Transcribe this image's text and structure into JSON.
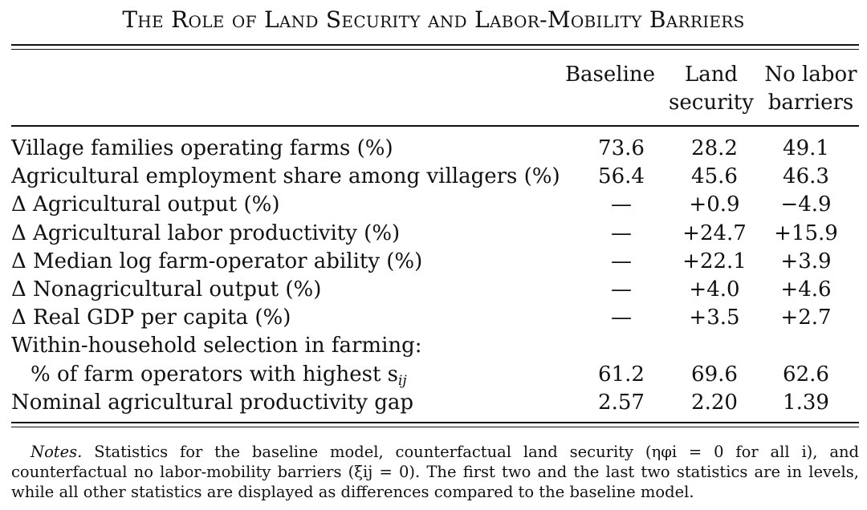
{
  "title": "The Role of Land Security and Labor-Mobility Barriers",
  "columns": {
    "baseline": [
      "Baseline"
    ],
    "land_security": [
      "Land",
      "security"
    ],
    "no_labor_barriers": [
      "No labor",
      "barriers"
    ]
  },
  "rows": [
    {
      "label": "Village families operating farms (%)",
      "baseline": "73.6",
      "land_security": "28.2",
      "no_labor_barriers": "49.1"
    },
    {
      "label": "Agricultural employment share among villagers (%)",
      "baseline": "56.4",
      "land_security": "45.6",
      "no_labor_barriers": "46.3"
    },
    {
      "label": "Δ Agricultural output (%)",
      "baseline": "—",
      "land_security": "+0.9",
      "no_labor_barriers": "−4.9"
    },
    {
      "label": "Δ Agricultural labor productivity (%)",
      "baseline": "—",
      "land_security": "+24.7",
      "no_labor_barriers": "+15.9"
    },
    {
      "label": "Δ Median log farm-operator ability (%)",
      "baseline": "—",
      "land_security": "+22.1",
      "no_labor_barriers": "+3.9"
    },
    {
      "label": "Δ Nonagricultural output (%)",
      "baseline": "—",
      "land_security": "+4.0",
      "no_labor_barriers": "+4.6"
    },
    {
      "label": "Δ Real GDP per capita (%)",
      "baseline": "—",
      "land_security": "+3.5",
      "no_labor_barriers": "+2.7"
    },
    {
      "label": "Within-household selection in farming:",
      "baseline": "",
      "land_security": "",
      "no_labor_barriers": ""
    },
    {
      "label": "% of farm operators with highest s",
      "label_sub": "ij",
      "baseline": "61.2",
      "land_security": "69.6",
      "no_labor_barriers": "62.6"
    },
    {
      "label": "Nominal agricultural productivity gap",
      "baseline": "2.57",
      "land_security": "2.20",
      "no_labor_barriers": "1.39"
    }
  ],
  "notes": {
    "lead": "Notes.",
    "text": "Statistics for the baseline model, counterfactual land security (ηφi = 0 for all i), and counterfactual no labor-mobility barriers (ξij = 0). The first two and the last two statistics are in levels, while all other statistics are displayed as differences compared to the baseline model."
  }
}
